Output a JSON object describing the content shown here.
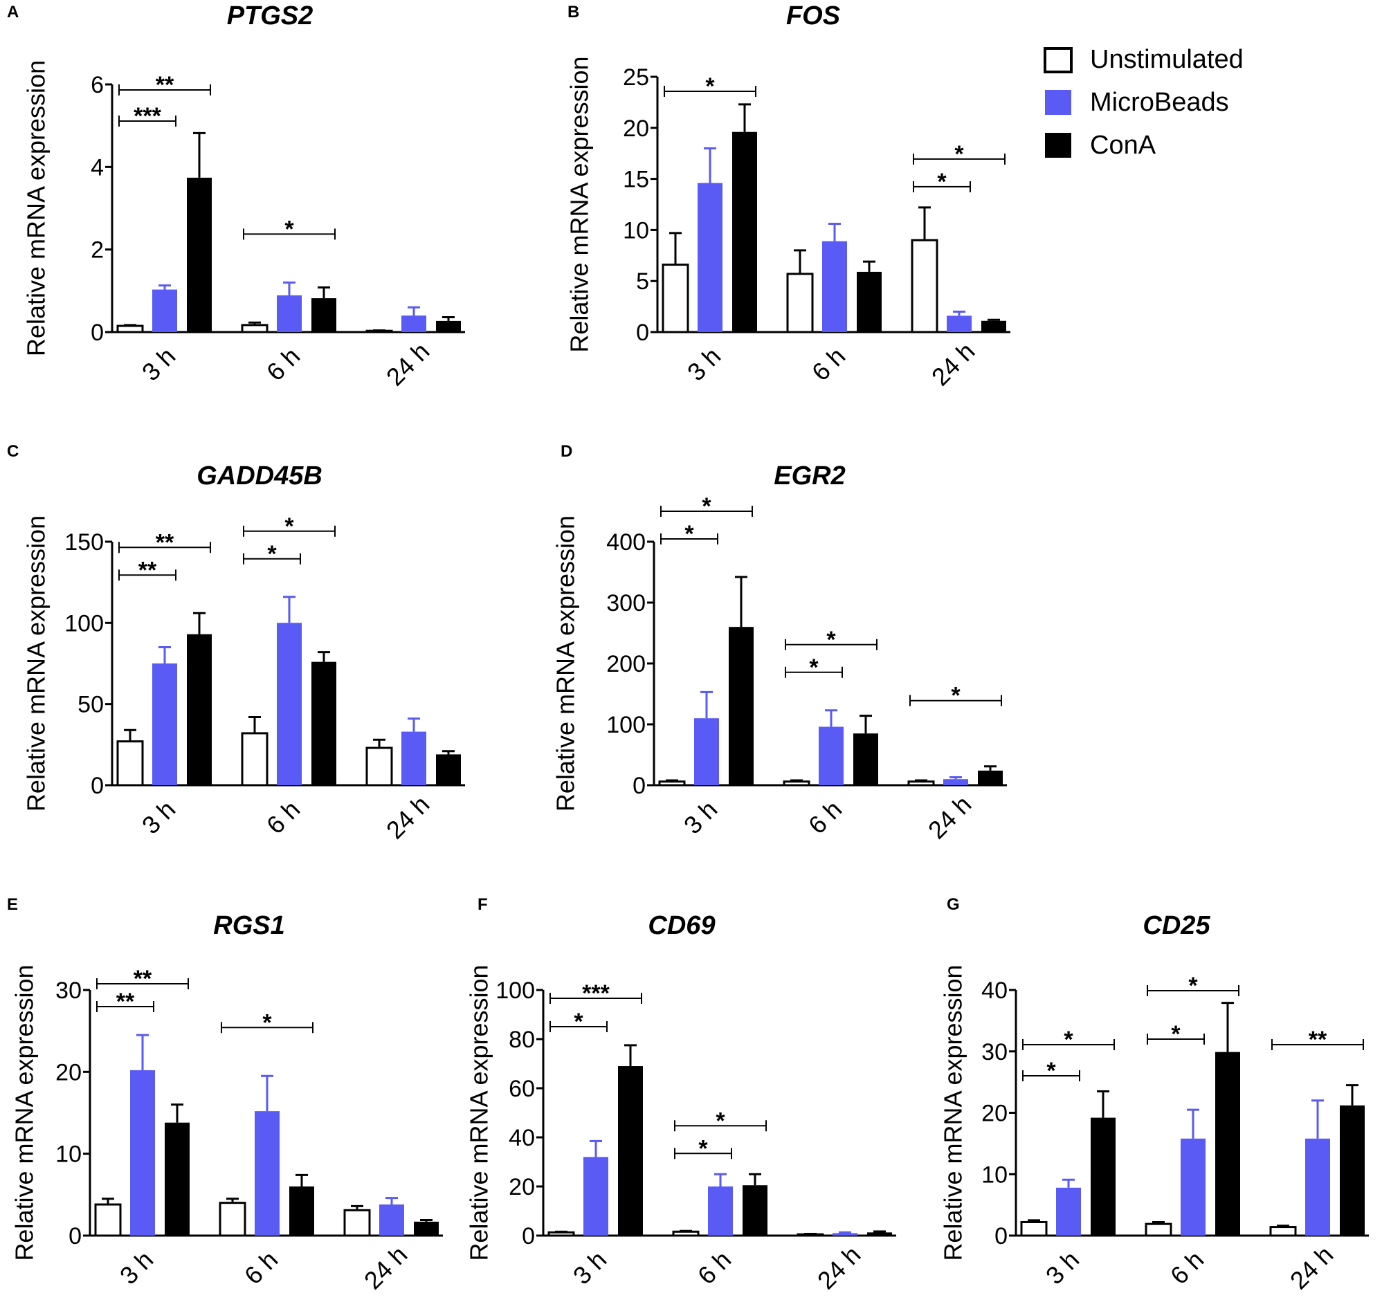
{
  "legend": {
    "items": [
      {
        "label": "Unstimulated",
        "fill": "#ffffff"
      },
      {
        "label": "MicroBeads",
        "fill": "#5a5af5"
      },
      {
        "label": "ConA",
        "fill": "#000000"
      }
    ]
  },
  "colors": {
    "unstimulated": "#ffffff",
    "microbeads": "#5a5af5",
    "cona": "#000000",
    "stroke": "#000000"
  },
  "chart_data": [
    {
      "panel": "A",
      "type": "bar",
      "title": "PTGS2",
      "ylabel": "Relative mRNA expression",
      "ylim": [
        0,
        6
      ],
      "yticks": [
        0,
        2,
        4,
        6
      ],
      "categories": [
        "3 h",
        "6 h",
        "24 h"
      ],
      "series": [
        {
          "name": "Unstimulated",
          "values": [
            0.15,
            0.17,
            0.03
          ],
          "errors": [
            0.02,
            0.06,
            0.01
          ]
        },
        {
          "name": "MicroBeads",
          "values": [
            1.03,
            0.89,
            0.4
          ],
          "errors": [
            0.1,
            0.31,
            0.2
          ]
        },
        {
          "name": "ConA",
          "values": [
            3.74,
            0.82,
            0.27
          ],
          "errors": [
            1.08,
            0.26,
            0.09
          ]
        }
      ],
      "significance": [
        {
          "category": 0,
          "from": 0,
          "to": 2,
          "label": "**"
        },
        {
          "category": 0,
          "from": 0,
          "to": 1,
          "label": "***"
        },
        {
          "category": 1,
          "from": 0,
          "to": 2,
          "label": "*"
        }
      ]
    },
    {
      "panel": "B",
      "type": "bar",
      "title": "FOS",
      "ylabel": "Relative mRNA expression",
      "ylim": [
        0,
        25
      ],
      "yticks": [
        0,
        5,
        10,
        15,
        20,
        25
      ],
      "categories": [
        "3 h",
        "6 h",
        "24 h"
      ],
      "series": [
        {
          "name": "Unstimulated",
          "values": [
            6.6,
            5.7,
            9.0
          ],
          "errors": [
            3.1,
            2.3,
            3.2
          ]
        },
        {
          "name": "MicroBeads",
          "values": [
            14.6,
            8.9,
            1.6
          ],
          "errors": [
            3.4,
            1.7,
            0.4
          ]
        },
        {
          "name": "ConA",
          "values": [
            19.6,
            5.9,
            1.1
          ],
          "errors": [
            2.7,
            1.0,
            0.1
          ]
        }
      ],
      "significance": [
        {
          "category": 0,
          "from": 0,
          "to": 2,
          "label": "*"
        },
        {
          "category": 2,
          "from": 0,
          "to": 2,
          "label": "*"
        },
        {
          "category": 2,
          "from": 0,
          "to": 1,
          "label": "*"
        }
      ]
    },
    {
      "panel": "C",
      "type": "bar",
      "title": "GADD45B",
      "ylabel": "Relative mRNA expression",
      "ylim": [
        0,
        150
      ],
      "yticks": [
        0,
        50,
        100,
        150
      ],
      "categories": [
        "3 h",
        "6 h",
        "24 h"
      ],
      "series": [
        {
          "name": "Unstimulated",
          "values": [
            27,
            32,
            23
          ],
          "errors": [
            7,
            10,
            5
          ]
        },
        {
          "name": "MicroBeads",
          "values": [
            75,
            100,
            33
          ],
          "errors": [
            10,
            16,
            8
          ]
        },
        {
          "name": "ConA",
          "values": [
            93,
            76,
            19
          ],
          "errors": [
            13,
            6,
            2
          ]
        }
      ],
      "significance": [
        {
          "category": 0,
          "from": 0,
          "to": 2,
          "label": "**"
        },
        {
          "category": 0,
          "from": 0,
          "to": 1,
          "label": "**"
        },
        {
          "category": 1,
          "from": 0,
          "to": 2,
          "label": "*"
        },
        {
          "category": 1,
          "from": 0,
          "to": 1,
          "label": "*"
        }
      ]
    },
    {
      "panel": "D",
      "type": "bar",
      "title": "EGR2",
      "ylabel": "Relative mRNA expression",
      "ylim": [
        0,
        400
      ],
      "yticks": [
        0,
        100,
        200,
        300,
        400
      ],
      "categories": [
        "3 h",
        "6 h",
        "24 h"
      ],
      "series": [
        {
          "name": "Unstimulated",
          "values": [
            6,
            6,
            6
          ],
          "errors": [
            2,
            2,
            2
          ]
        },
        {
          "name": "MicroBeads",
          "values": [
            110,
            96,
            10
          ],
          "errors": [
            43,
            27,
            3
          ]
        },
        {
          "name": "ConA",
          "values": [
            260,
            85,
            24
          ],
          "errors": [
            82,
            29,
            7
          ]
        }
      ],
      "significance": [
        {
          "category": 0,
          "from": 0,
          "to": 2,
          "label": "*"
        },
        {
          "category": 0,
          "from": 0,
          "to": 1,
          "label": "*"
        },
        {
          "category": 1,
          "from": 0,
          "to": 2,
          "label": "*"
        },
        {
          "category": 1,
          "from": 0,
          "to": 1,
          "label": "*"
        },
        {
          "category": 2,
          "from": 0,
          "to": 2,
          "label": "*"
        }
      ]
    },
    {
      "panel": "E",
      "type": "bar",
      "title": "RGS1",
      "ylabel": "Relative mRNA expression",
      "ylim": [
        0,
        30
      ],
      "yticks": [
        0,
        10,
        20,
        30
      ],
      "categories": [
        "3 h",
        "6 h",
        "24 h"
      ],
      "series": [
        {
          "name": "Unstimulated",
          "values": [
            3.8,
            4.0,
            3.1
          ],
          "errors": [
            0.7,
            0.5,
            0.5
          ]
        },
        {
          "name": "MicroBeads",
          "values": [
            20.2,
            15.2,
            3.8
          ],
          "errors": [
            4.3,
            4.3,
            0.8
          ]
        },
        {
          "name": "ConA",
          "values": [
            13.8,
            6.0,
            1.7
          ],
          "errors": [
            2.2,
            1.4,
            0.2
          ]
        }
      ],
      "significance": [
        {
          "category": 0,
          "from": 0,
          "to": 2,
          "label": "**"
        },
        {
          "category": 0,
          "from": 0,
          "to": 1,
          "label": "**"
        },
        {
          "category": 1,
          "from": 0,
          "to": 2,
          "label": "*"
        }
      ]
    },
    {
      "panel": "F",
      "type": "bar",
      "title": "CD69",
      "ylabel": "Relative mRNA expression",
      "ylim": [
        0,
        100
      ],
      "yticks": [
        0,
        20,
        40,
        60,
        80,
        100
      ],
      "categories": [
        "3 h",
        "6 h",
        "24 h"
      ],
      "series": [
        {
          "name": "Unstimulated",
          "values": [
            1.3,
            1.6,
            0.5
          ],
          "errors": [
            0.3,
            0.3,
            0.2
          ]
        },
        {
          "name": "MicroBeads",
          "values": [
            32,
            20,
            1.0
          ],
          "errors": [
            6.5,
            5,
            0.3
          ]
        },
        {
          "name": "ConA",
          "values": [
            69,
            20.5,
            1.3
          ],
          "errors": [
            8.5,
            4.5,
            0.4
          ]
        }
      ],
      "significance": [
        {
          "category": 0,
          "from": 0,
          "to": 2,
          "label": "***"
        },
        {
          "category": 0,
          "from": 0,
          "to": 1,
          "label": "*"
        },
        {
          "category": 1,
          "from": 0,
          "to": 2,
          "label": "*"
        },
        {
          "category": 1,
          "from": 0,
          "to": 1,
          "label": "*"
        }
      ]
    },
    {
      "panel": "G",
      "type": "bar",
      "title": "CD25",
      "ylabel": "Relative mRNA expression",
      "ylim": [
        0,
        40
      ],
      "yticks": [
        0,
        10,
        20,
        30,
        40
      ],
      "categories": [
        "3 h",
        "6 h",
        "24 h"
      ],
      "series": [
        {
          "name": "Unstimulated",
          "values": [
            2.2,
            1.9,
            1.4
          ],
          "errors": [
            0.3,
            0.3,
            0.2
          ]
        },
        {
          "name": "MicroBeads",
          "values": [
            7.8,
            15.8,
            15.8
          ],
          "errors": [
            1.3,
            4.7,
            6.2
          ]
        },
        {
          "name": "ConA",
          "values": [
            19.2,
            29.9,
            21.2
          ],
          "errors": [
            4.3,
            8.0,
            3.3
          ]
        }
      ],
      "significance": [
        {
          "category": 0,
          "from": 0,
          "to": 2,
          "label": "*"
        },
        {
          "category": 0,
          "from": 0,
          "to": 1,
          "label": "*"
        },
        {
          "category": 1,
          "from": 0,
          "to": 2,
          "label": "*"
        },
        {
          "category": 1,
          "from": 0,
          "to": 1,
          "label": "*"
        },
        {
          "category": 2,
          "from": 0,
          "to": 2,
          "label": "**"
        }
      ]
    }
  ]
}
